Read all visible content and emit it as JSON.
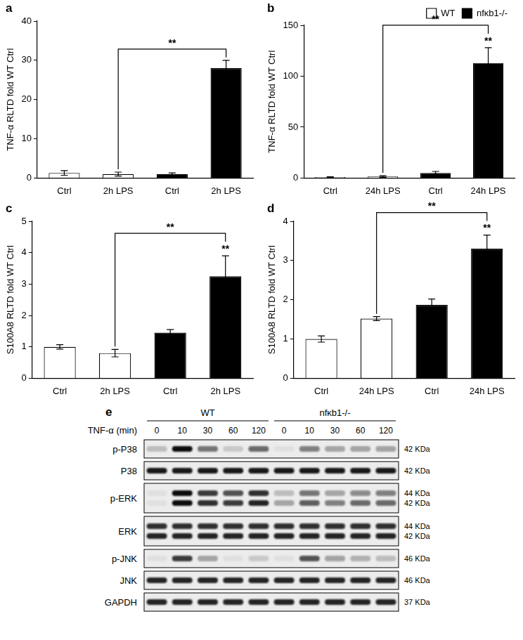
{
  "chart_data": [
    {
      "title": "a",
      "type": "bar",
      "ylabel": "TNF-α RLTD fold WT Ctrl",
      "categories": [
        "Ctrl",
        "2h LPS",
        "Ctrl",
        "2h LPS"
      ],
      "series": [
        {
          "name": "WT",
          "color": "#ffffff",
          "values": [
            1.3,
            1.0,
            null,
            null
          ],
          "errors": [
            0.6,
            0.5,
            null,
            null
          ]
        },
        {
          "name": "nfκb1-/-",
          "color": "#000000",
          "values": [
            null,
            null,
            1.0,
            28
          ],
          "errors": [
            null,
            null,
            0.3,
            2
          ]
        }
      ],
      "ylim": [
        0,
        40
      ],
      "yticks": [
        0,
        10,
        20,
        30,
        40
      ],
      "grid": false,
      "annotations": [
        {
          "from": 1,
          "to": 3,
          "text": "**"
        }
      ]
    },
    {
      "title": "b",
      "type": "bar",
      "ylabel": "TNF-α RLTD fold WT Ctrl",
      "categories": [
        "Ctrl",
        "24h LPS",
        "Ctrl",
        "24h LPS"
      ],
      "series": [
        {
          "name": "WT",
          "color": "#ffffff",
          "values": [
            1.0,
            1.5,
            null,
            null
          ],
          "errors": [
            0.3,
            0.8,
            null,
            null
          ]
        },
        {
          "name": "nfκb1-/-",
          "color": "#000000",
          "values": [
            null,
            null,
            5,
            113
          ],
          "errors": [
            null,
            null,
            1.5,
            15
          ]
        }
      ],
      "ylim": [
        0,
        150
      ],
      "yticks": [
        0,
        50,
        100,
        150
      ],
      "grid": false,
      "legend": "top right",
      "annotations": [
        {
          "from": 1,
          "to": 3,
          "text": "**"
        },
        {
          "at": 3,
          "text": "**"
        }
      ]
    },
    {
      "title": "c",
      "type": "bar",
      "ylabel": "S100A8 RLTD fold WT Ctrl",
      "categories": [
        "Ctrl",
        "2h LPS",
        "Ctrl",
        "2h LPS"
      ],
      "series": [
        {
          "name": "WT",
          "color": "#ffffff",
          "values": [
            1.0,
            0.8,
            null,
            null
          ],
          "errors": [
            0.07,
            0.12,
            null,
            null
          ]
        },
        {
          "name": "nfκb1-/-",
          "color": "#000000",
          "values": [
            null,
            null,
            1.45,
            3.25
          ],
          "errors": [
            null,
            null,
            0.1,
            0.65
          ]
        }
      ],
      "ylim": [
        0,
        5
      ],
      "yticks": [
        0,
        1,
        2,
        3,
        4,
        5
      ],
      "grid": false,
      "annotations": [
        {
          "from": 1,
          "to": 3,
          "text": "**"
        },
        {
          "at": 3,
          "text": "**"
        }
      ]
    },
    {
      "title": "d",
      "type": "bar",
      "ylabel": "S100A8 RLTD fold WT Ctrl",
      "categories": [
        "Ctrl",
        "24h LPS",
        "Ctrl",
        "24h LPS"
      ],
      "series": [
        {
          "name": "WT",
          "color": "#ffffff",
          "values": [
            1.0,
            1.52,
            null,
            null
          ],
          "errors": [
            0.08,
            0.05,
            null,
            null
          ]
        },
        {
          "name": "nfκb1-/-",
          "color": "#000000",
          "values": [
            null,
            null,
            1.87,
            3.3
          ],
          "errors": [
            null,
            null,
            0.15,
            0.35
          ]
        }
      ],
      "ylim": [
        0,
        4
      ],
      "yticks": [
        0,
        1,
        2,
        3,
        4
      ],
      "grid": false,
      "annotations": [
        {
          "from": 1,
          "to": 3,
          "text": "**"
        },
        {
          "at": 3,
          "text": "**"
        }
      ]
    }
  ],
  "blot": {
    "title": "e",
    "groups": [
      "WT",
      "nfκb1-/-"
    ],
    "treatment": "TNF-α (min)",
    "times": [
      0,
      10,
      30,
      60,
      120,
      0,
      10,
      30,
      60,
      120
    ],
    "rows": [
      {
        "name": "p-P38",
        "bands": [
          {
            "kda": "42 KDa",
            "intensity": [
              0.2,
              1.0,
              0.55,
              0.15,
              0.6,
              0.05,
              0.5,
              0.3,
              0.3,
              0.35
            ]
          }
        ]
      },
      {
        "name": "P38",
        "bands": [
          {
            "kda": "42 KDa",
            "intensity": [
              0.95,
              0.95,
              0.95,
              0.95,
              0.95,
              0.95,
              0.95,
              0.95,
              0.95,
              0.95
            ]
          }
        ]
      },
      {
        "name": "p-ERK",
        "bands": [
          {
            "kda": "44 KDa",
            "intensity": [
              0.05,
              1.0,
              0.8,
              0.7,
              0.85,
              0.2,
              0.55,
              0.3,
              0.45,
              0.5
            ]
          },
          {
            "kda": "42 KDa",
            "intensity": [
              0.05,
              1.0,
              0.85,
              0.8,
              0.9,
              0.3,
              0.65,
              0.5,
              0.6,
              0.6
            ]
          }
        ]
      },
      {
        "name": "ERK",
        "bands": [
          {
            "kda": "44 KDa",
            "intensity": [
              0.85,
              0.85,
              0.85,
              0.85,
              0.85,
              0.85,
              0.85,
              0.85,
              0.85,
              0.85
            ]
          },
          {
            "kda": "42 KDa",
            "intensity": [
              0.9,
              0.9,
              0.9,
              0.9,
              0.9,
              0.9,
              0.9,
              0.9,
              0.9,
              0.9
            ]
          }
        ]
      },
      {
        "name": "p-JNK",
        "bands": [
          {
            "kda": "46 KDa",
            "intensity": [
              0.05,
              0.8,
              0.3,
              0.05,
              0.15,
              0.05,
              0.7,
              0.35,
              0.25,
              0.2
            ]
          }
        ]
      },
      {
        "name": "JNK",
        "bands": [
          {
            "kda": "46 KDa",
            "intensity": [
              0.9,
              0.9,
              0.9,
              0.9,
              0.9,
              0.9,
              0.9,
              0.9,
              0.9,
              0.9
            ]
          }
        ]
      },
      {
        "name": "GAPDH",
        "bands": [
          {
            "kda": "37 KDa",
            "intensity": [
              0.9,
              0.9,
              0.9,
              0.9,
              0.9,
              0.9,
              0.9,
              0.9,
              0.9,
              0.9
            ]
          }
        ]
      }
    ]
  }
}
